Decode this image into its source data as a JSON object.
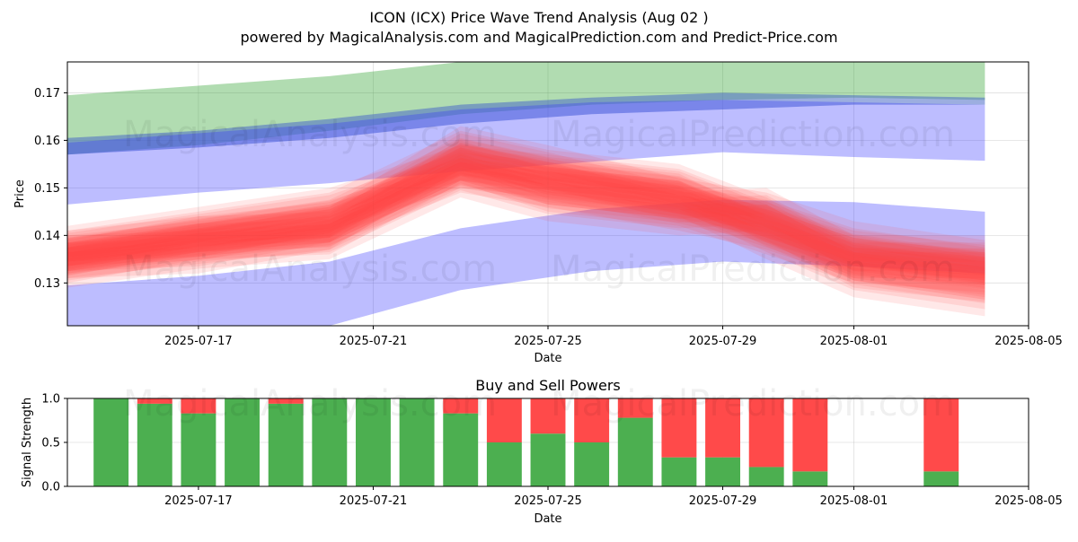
{
  "colors": {
    "green_band": "#2ca02c",
    "blue_band": "#3333ff",
    "dark_blue_band": "#4a6bc6",
    "red_wave": "#ff4444",
    "buy_bar": "#4caf50",
    "sell_bar": "#ff4a4a",
    "grid": "#b0b0b0"
  },
  "chart_data": [
    {
      "type": "area",
      "title": "ICON (ICX) Price Wave Trend Analysis (Aug 02 )",
      "subtitle": "powered by MagicalAnalysis.com and MagicalPrediction.com and Predict-Price.com",
      "xlabel": "Date",
      "ylabel": "Price",
      "xlim": [
        "2025-07-14 00:00",
        "2025-08-05"
      ],
      "ylim": [
        0.121,
        0.1765
      ],
      "x_ticks": [
        "2025-07-17",
        "2025-07-21",
        "2025-07-25",
        "2025-07-29",
        "2025-08-01",
        "2025-08-05"
      ],
      "y_ticks": [
        0.13,
        0.14,
        0.15,
        0.16,
        0.17
      ],
      "watermarks": [
        "MagicalAnalysis.com",
        "MagicalPrediction.com"
      ],
      "bands": [
        {
          "name": "upper green band",
          "color_key": "green_band",
          "x": [
            "2025-07-14",
            "2025-07-17",
            "2025-07-20",
            "2025-07-23",
            "2025-07-26",
            "2025-07-29",
            "2025-08-01",
            "2025-08-04"
          ],
          "upper": [
            0.1695,
            0.1715,
            0.1735,
            0.1765,
            0.178,
            0.178,
            0.178,
            0.1765
          ],
          "lower": [
            0.157,
            0.159,
            0.162,
            0.1655,
            0.1675,
            0.1685,
            0.169,
            0.1685
          ]
        },
        {
          "name": "dark blue band",
          "color_key": "dark_blue_band",
          "x": [
            "2025-07-14",
            "2025-07-17",
            "2025-07-20",
            "2025-07-23",
            "2025-07-26",
            "2025-07-29",
            "2025-08-01",
            "2025-08-04"
          ],
          "upper": [
            0.1605,
            0.162,
            0.1645,
            0.1675,
            0.169,
            0.17,
            0.1695,
            0.169
          ],
          "lower": [
            0.157,
            0.1585,
            0.1605,
            0.1635,
            0.1655,
            0.1665,
            0.1675,
            0.1675
          ]
        },
        {
          "name": "upper blue band",
          "color_key": "blue_band",
          "x": [
            "2025-07-14",
            "2025-07-17",
            "2025-07-20",
            "2025-07-23",
            "2025-07-26",
            "2025-07-29",
            "2025-08-01",
            "2025-08-04"
          ],
          "upper": [
            0.1595,
            0.1615,
            0.1635,
            0.1665,
            0.168,
            0.1685,
            0.168,
            0.1675
          ],
          "lower": [
            0.1465,
            0.149,
            0.151,
            0.1535,
            0.1555,
            0.1575,
            0.1565,
            0.1557
          ]
        },
        {
          "name": "lower blue band",
          "color_key": "blue_band",
          "x": [
            "2025-07-14",
            "2025-07-17",
            "2025-07-20",
            "2025-07-23",
            "2025-07-26",
            "2025-07-29",
            "2025-08-01",
            "2025-08-04"
          ],
          "upper": [
            0.1295,
            0.1315,
            0.1345,
            0.1415,
            0.1455,
            0.1475,
            0.147,
            0.145
          ],
          "lower": [
            0.12,
            0.12,
            0.121,
            0.1285,
            0.1325,
            0.1345,
            0.1335,
            0.132
          ]
        }
      ],
      "series": [
        {
          "name": "wave 1",
          "x": [
            "2025-07-14",
            "2025-07-17",
            "2025-07-20",
            "2025-07-23",
            "2025-07-25",
            "2025-07-28",
            "2025-07-30",
            "2025-08-01",
            "2025-08-04"
          ],
          "values": [
            0.1355,
            0.1385,
            0.1415,
            0.1545,
            0.1525,
            0.1495,
            0.1425,
            0.1365,
            0.1335
          ]
        },
        {
          "name": "wave 2",
          "x": [
            "2025-07-14",
            "2025-07-17",
            "2025-07-20",
            "2025-07-23",
            "2025-07-25",
            "2025-07-28",
            "2025-07-30",
            "2025-08-01",
            "2025-08-04"
          ],
          "values": [
            0.1345,
            0.1395,
            0.1405,
            0.1555,
            0.1495,
            0.1465,
            0.1405,
            0.1345,
            0.1325
          ]
        },
        {
          "name": "wave 3",
          "x": [
            "2025-07-14",
            "2025-07-17",
            "2025-07-20",
            "2025-07-23",
            "2025-07-25",
            "2025-07-28",
            "2025-07-30",
            "2025-08-01",
            "2025-08-04"
          ],
          "values": [
            0.1365,
            0.1405,
            0.1445,
            0.1575,
            0.1535,
            0.1505,
            0.1435,
            0.1335,
            0.1305
          ]
        },
        {
          "name": "wave 4",
          "x": [
            "2025-07-14",
            "2025-07-17",
            "2025-07-20",
            "2025-07-23",
            "2025-07-25",
            "2025-07-28",
            "2025-07-30",
            "2025-08-01",
            "2025-08-04"
          ],
          "values": [
            0.1335,
            0.1375,
            0.1395,
            0.1525,
            0.1475,
            0.1445,
            0.1455,
            0.1355,
            0.1315
          ]
        },
        {
          "name": "wave 5",
          "x": [
            "2025-07-14",
            "2025-07-17",
            "2025-07-20",
            "2025-07-23",
            "2025-07-25",
            "2025-07-28",
            "2025-07-30",
            "2025-08-01",
            "2025-08-04"
          ],
          "values": [
            0.1375,
            0.1415,
            0.1455,
            0.1545,
            0.1515,
            0.1485,
            0.1395,
            0.1315,
            0.1275
          ]
        },
        {
          "name": "wave 6",
          "x": [
            "2025-07-14",
            "2025-07-17",
            "2025-07-20",
            "2025-07-23",
            "2025-07-25",
            "2025-07-28",
            "2025-07-30",
            "2025-08-01",
            "2025-08-04"
          ],
          "values": [
            0.1355,
            0.1365,
            0.1415,
            0.1585,
            0.1545,
            0.1475,
            0.1445,
            0.1385,
            0.1345
          ]
        },
        {
          "name": "wave 7",
          "x": [
            "2025-07-14",
            "2025-07-17",
            "2025-07-20",
            "2025-07-23",
            "2025-07-25",
            "2025-07-28",
            "2025-07-30",
            "2025-08-01",
            "2025-08-04"
          ],
          "values": [
            0.1365,
            0.1395,
            0.1425,
            0.1535,
            0.1505,
            0.1455,
            0.1415,
            0.1355,
            0.1355
          ]
        }
      ]
    },
    {
      "type": "bar",
      "title": "Buy and Sell Powers",
      "xlabel": "Date",
      "ylabel": "Signal Strength",
      "xlim": [
        "2025-07-14 00:00",
        "2025-08-05"
      ],
      "ylim": [
        0,
        1.0
      ],
      "x_ticks": [
        "2025-07-17",
        "2025-07-21",
        "2025-07-25",
        "2025-07-29",
        "2025-08-01",
        "2025-08-05"
      ],
      "y_ticks": [
        "0.0",
        "0.5",
        "1.0"
      ],
      "categories": [
        "2025-07-15",
        "2025-07-16",
        "2025-07-17",
        "2025-07-18",
        "2025-07-19",
        "2025-07-20",
        "2025-07-21",
        "2025-07-22",
        "2025-07-23",
        "2025-07-24",
        "2025-07-25",
        "2025-07-26",
        "2025-07-27",
        "2025-07-28",
        "2025-07-29",
        "2025-07-30",
        "2025-07-31",
        "2025-08-03"
      ],
      "series": [
        {
          "name": "Buy",
          "color_key": "buy_bar",
          "values": [
            1.0,
            0.94,
            0.83,
            1.0,
            0.94,
            1.0,
            1.0,
            1.0,
            0.83,
            0.5,
            0.6,
            0.5,
            0.78,
            0.33,
            0.33,
            0.22,
            0.17,
            0.17
          ]
        },
        {
          "name": "Sell",
          "color_key": "sell_bar",
          "values": [
            0.0,
            0.06,
            0.17,
            0.0,
            0.06,
            0.0,
            0.0,
            0.0,
            0.17,
            0.5,
            0.4,
            0.5,
            0.22,
            0.67,
            0.67,
            0.78,
            0.83,
            0.83
          ]
        }
      ]
    }
  ]
}
